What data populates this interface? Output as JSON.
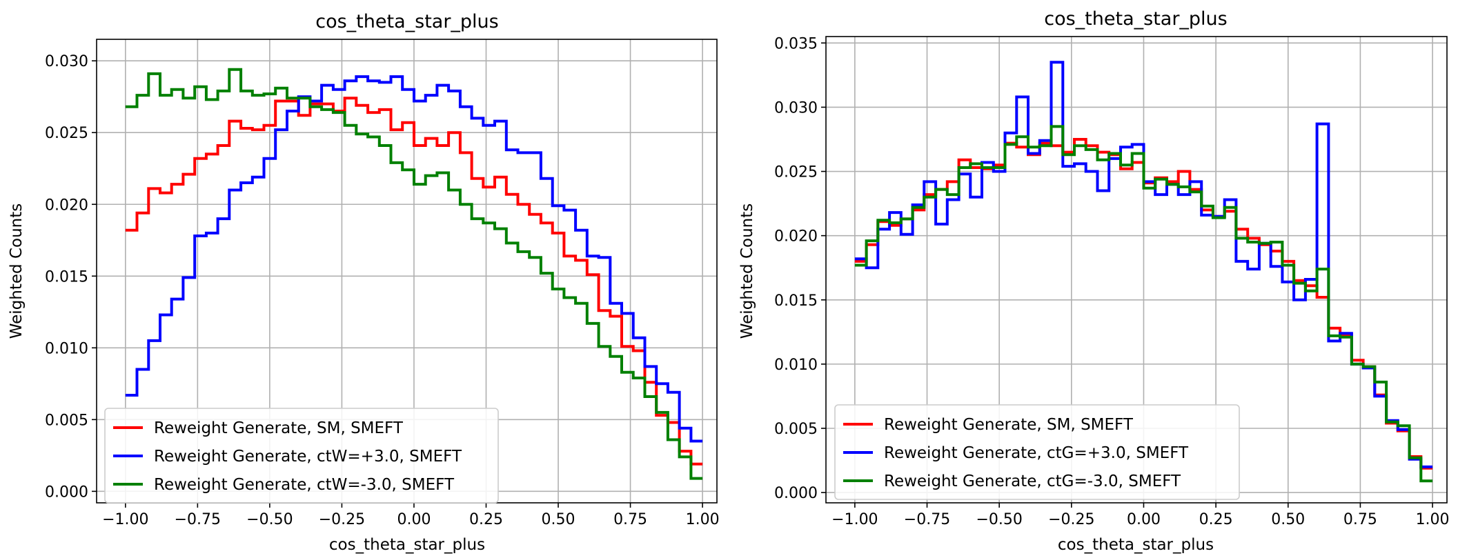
{
  "figure": {
    "charts": [
      {
        "title": "cos_theta_star_plus",
        "xlabel": "cos_theta_star_plus",
        "ylabel": "Weighted Counts"
      },
      {
        "title": "cos_theta_star_plus",
        "xlabel": "cos_theta_star_plus",
        "ylabel": "Weighted Counts"
      }
    ]
  },
  "chart_data": [
    {
      "type": "line",
      "drawstyle": "steps-post",
      "title": "cos_theta_star_plus",
      "xlabel": "cos_theta_star_plus",
      "ylabel": "Weighted Counts",
      "xlim": [
        -1.1,
        1.05
      ],
      "ylim": [
        -0.0008,
        0.0315
      ],
      "xticks": [
        -1.0,
        -0.75,
        -0.5,
        -0.25,
        0.0,
        0.25,
        0.5,
        0.75,
        1.0
      ],
      "xtick_labels": [
        "−1.00",
        "−0.75",
        "−0.50",
        "−0.25",
        "0.00",
        "0.25",
        "0.50",
        "0.75",
        "1.00"
      ],
      "yticks": [
        0.0,
        0.005,
        0.01,
        0.015,
        0.02,
        0.025,
        0.03
      ],
      "ytick_labels": [
        "0.000",
        "0.005",
        "0.010",
        "0.015",
        "0.020",
        "0.025",
        "0.030"
      ],
      "grid": true,
      "legend_position": "lower left",
      "bin_edges": [
        -1.0,
        -0.96,
        -0.92,
        -0.88,
        -0.84,
        -0.8,
        -0.76,
        -0.72,
        -0.68,
        -0.64,
        -0.6,
        -0.56,
        -0.52,
        -0.48,
        -0.44,
        -0.4,
        -0.36,
        -0.32,
        -0.28,
        -0.24,
        -0.2,
        -0.16,
        -0.12,
        -0.08,
        -0.04,
        0.0,
        0.04,
        0.08,
        0.12,
        0.16,
        0.2,
        0.24,
        0.28,
        0.32,
        0.36,
        0.4,
        0.44,
        0.48,
        0.52,
        0.56,
        0.6,
        0.64,
        0.68,
        0.72,
        0.76,
        0.8,
        0.84,
        0.88,
        0.92,
        0.96
      ],
      "series": [
        {
          "name": "Reweight Generate, SM, SMEFT",
          "color": "#ff0000",
          "values": [
            0.0182,
            0.0194,
            0.0211,
            0.0208,
            0.0214,
            0.0221,
            0.0232,
            0.0235,
            0.0241,
            0.0258,
            0.0253,
            0.0252,
            0.0255,
            0.0272,
            0.0272,
            0.0262,
            0.027,
            0.027,
            0.0265,
            0.0274,
            0.0269,
            0.0264,
            0.0266,
            0.0252,
            0.0257,
            0.0241,
            0.0246,
            0.0241,
            0.025,
            0.0236,
            0.0218,
            0.0212,
            0.0219,
            0.0207,
            0.02,
            0.0193,
            0.0187,
            0.018,
            0.0164,
            0.0161,
            0.0151,
            0.0126,
            0.0122,
            0.0101,
            0.0098,
            0.0076,
            0.0053,
            0.0048,
            0.0028,
            0.0019
          ]
        },
        {
          "name": "Reweight Generate, ctW=+3.0, SMEFT",
          "color": "#0000ff",
          "values": [
            0.0067,
            0.0085,
            0.0105,
            0.0123,
            0.0134,
            0.0149,
            0.0178,
            0.018,
            0.019,
            0.021,
            0.0215,
            0.0219,
            0.0232,
            0.0252,
            0.0265,
            0.0275,
            0.0272,
            0.0283,
            0.028,
            0.0286,
            0.0289,
            0.0286,
            0.0285,
            0.0289,
            0.028,
            0.0272,
            0.0276,
            0.0283,
            0.0279,
            0.0268,
            0.026,
            0.0255,
            0.0258,
            0.0238,
            0.0236,
            0.0236,
            0.0218,
            0.0199,
            0.0196,
            0.0182,
            0.0164,
            0.0163,
            0.0131,
            0.0124,
            0.0107,
            0.0087,
            0.0075,
            0.0069,
            0.0044,
            0.0035
          ]
        },
        {
          "name": "Reweight Generate, ctW=-3.0, SMEFT",
          "color": "#008000",
          "values": [
            0.0268,
            0.0276,
            0.0291,
            0.0276,
            0.028,
            0.0274,
            0.0282,
            0.0273,
            0.0279,
            0.0294,
            0.0279,
            0.0276,
            0.0277,
            0.0281,
            0.0274,
            0.0274,
            0.0268,
            0.0266,
            0.0264,
            0.0255,
            0.0249,
            0.0247,
            0.0241,
            0.0229,
            0.0224,
            0.0214,
            0.022,
            0.0222,
            0.021,
            0.02,
            0.019,
            0.0187,
            0.0183,
            0.0173,
            0.0167,
            0.0163,
            0.0152,
            0.0141,
            0.0135,
            0.0131,
            0.0117,
            0.0101,
            0.0094,
            0.0083,
            0.0079,
            0.0066,
            0.0055,
            0.0036,
            0.0024,
            0.0009
          ]
        }
      ]
    },
    {
      "type": "line",
      "drawstyle": "steps-post",
      "title": "cos_theta_star_plus",
      "xlabel": "cos_theta_star_plus",
      "ylabel": "Weighted Counts",
      "xlim": [
        -1.1,
        1.05
      ],
      "ylim": [
        -0.0008,
        0.0355
      ],
      "xticks": [
        -1.0,
        -0.75,
        -0.5,
        -0.25,
        0.0,
        0.25,
        0.5,
        0.75,
        1.0
      ],
      "xtick_labels": [
        "−1.00",
        "−0.75",
        "−0.50",
        "−0.25",
        "0.00",
        "0.25",
        "0.50",
        "0.75",
        "1.00"
      ],
      "yticks": [
        0.0,
        0.005,
        0.01,
        0.015,
        0.02,
        0.025,
        0.03,
        0.035
      ],
      "ytick_labels": [
        "0.000",
        "0.005",
        "0.010",
        "0.015",
        "0.020",
        "0.025",
        "0.030",
        "0.035"
      ],
      "grid": true,
      "legend_position": "lower left",
      "bin_edges": [
        -1.0,
        -0.96,
        -0.92,
        -0.88,
        -0.84,
        -0.8,
        -0.76,
        -0.72,
        -0.68,
        -0.64,
        -0.6,
        -0.56,
        -0.52,
        -0.48,
        -0.44,
        -0.4,
        -0.36,
        -0.32,
        -0.28,
        -0.24,
        -0.2,
        -0.16,
        -0.12,
        -0.08,
        -0.04,
        0.0,
        0.04,
        0.08,
        0.12,
        0.16,
        0.2,
        0.24,
        0.28,
        0.32,
        0.36,
        0.4,
        0.44,
        0.48,
        0.52,
        0.56,
        0.6,
        0.64,
        0.68,
        0.72,
        0.76,
        0.8,
        0.84,
        0.88,
        0.92,
        0.96
      ],
      "series": [
        {
          "name": "Reweight Generate, SM, SMEFT",
          "color": "#ff0000",
          "values": [
            0.018,
            0.0193,
            0.0211,
            0.0208,
            0.0213,
            0.022,
            0.0232,
            0.0236,
            0.0242,
            0.0259,
            0.0253,
            0.0252,
            0.0255,
            0.0272,
            0.0269,
            0.0263,
            0.0272,
            0.027,
            0.0265,
            0.0275,
            0.027,
            0.0265,
            0.0263,
            0.0252,
            0.0257,
            0.0241,
            0.0245,
            0.0242,
            0.025,
            0.0236,
            0.022,
            0.0215,
            0.0219,
            0.0205,
            0.0198,
            0.0193,
            0.0188,
            0.018,
            0.0165,
            0.0161,
            0.0152,
            0.0128,
            0.0123,
            0.0103,
            0.0098,
            0.0076,
            0.0054,
            0.0048,
            0.0028,
            0.0019
          ]
        },
        {
          "name": "Reweight Generate, ctG=+3.0, SMEFT",
          "color": "#0000ff",
          "values": [
            0.0182,
            0.0175,
            0.0205,
            0.0218,
            0.0201,
            0.0224,
            0.0242,
            0.0209,
            0.0228,
            0.0248,
            0.023,
            0.0257,
            0.025,
            0.028,
            0.0308,
            0.0264,
            0.0274,
            0.0335,
            0.0254,
            0.0256,
            0.025,
            0.0235,
            0.026,
            0.0269,
            0.0271,
            0.0242,
            0.0232,
            0.024,
            0.0232,
            0.0242,
            0.0216,
            0.0215,
            0.0228,
            0.018,
            0.0174,
            0.0194,
            0.0176,
            0.0164,
            0.015,
            0.0166,
            0.0287,
            0.0118,
            0.0124,
            0.01,
            0.0097,
            0.0075,
            0.0056,
            0.0049,
            0.0026,
            0.002
          ]
        },
        {
          "name": "Reweight Generate, ctG=-3.0, SMEFT",
          "color": "#008000",
          "values": [
            0.0177,
            0.0196,
            0.0212,
            0.021,
            0.0213,
            0.0222,
            0.023,
            0.0236,
            0.0232,
            0.0253,
            0.0256,
            0.0253,
            0.0253,
            0.0271,
            0.0277,
            0.0269,
            0.027,
            0.0285,
            0.0263,
            0.027,
            0.0267,
            0.0259,
            0.0264,
            0.0255,
            0.0264,
            0.0237,
            0.0244,
            0.024,
            0.0238,
            0.0234,
            0.0223,
            0.0214,
            0.0222,
            0.0198,
            0.0195,
            0.0194,
            0.0195,
            0.0177,
            0.0163,
            0.0157,
            0.0174,
            0.0122,
            0.0121,
            0.01,
            0.0098,
            0.0086,
            0.0055,
            0.0052,
            0.0027,
            0.0009
          ]
        }
      ]
    }
  ]
}
